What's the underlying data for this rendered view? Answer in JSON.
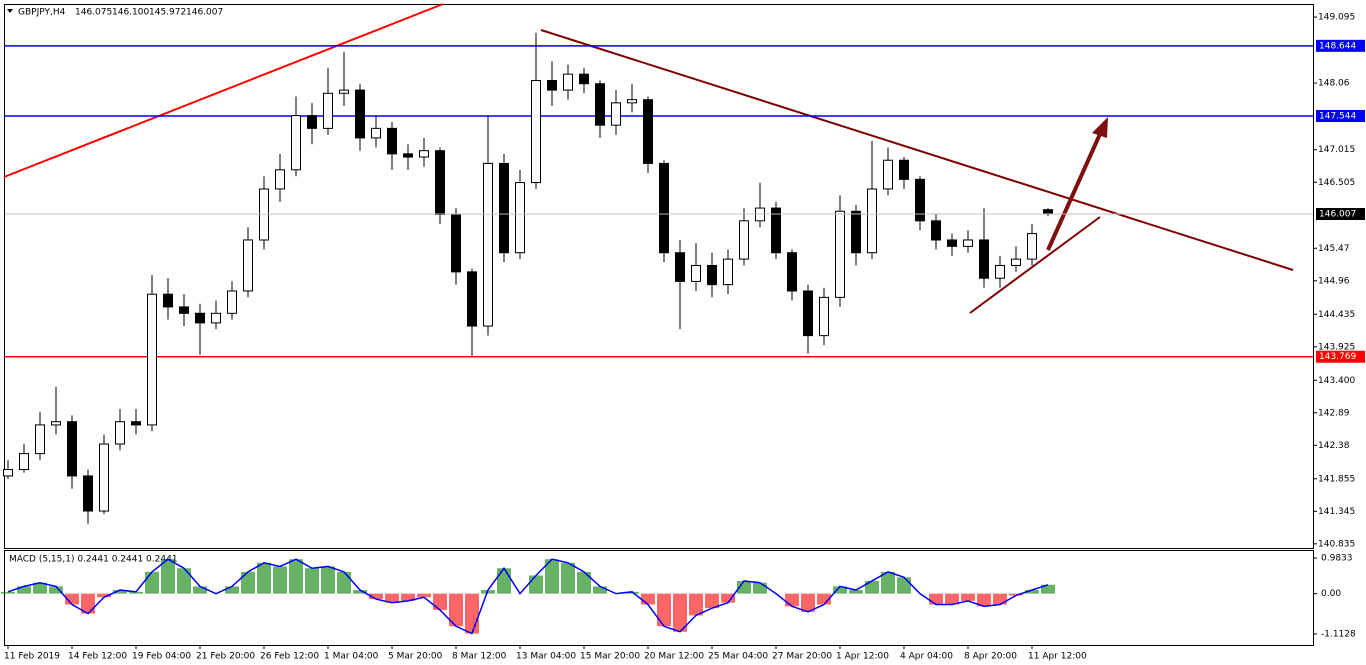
{
  "chart_data": {
    "type": "candlestick",
    "title": "GBPJPY,H4",
    "ohlc_labels": [
      "146.075",
      "146.100",
      "145.972",
      "146.007"
    ],
    "categories": [
      "11 Feb 2019",
      null,
      null,
      null,
      "14 Feb 12:00",
      null,
      null,
      null,
      "19 Feb 04:00",
      null,
      null,
      null,
      "21 Feb 20:00",
      null,
      null,
      null,
      "26 Feb 12:00",
      null,
      null,
      null,
      "1 Mar 04:00",
      null,
      null,
      null,
      "5 Mar 20:00",
      null,
      null,
      null,
      "8 Mar 12:00",
      null,
      null,
      null,
      "13 Mar 04:00",
      null,
      null,
      null,
      "15 Mar 20:00",
      null,
      null,
      null,
      "20 Mar 12:00",
      null,
      null,
      null,
      "25 Mar 04:00",
      null,
      null,
      null,
      "27 Mar 20:00",
      null,
      null,
      null,
      "1 Apr 12:00",
      null,
      null,
      null,
      "4 Apr 04:00",
      null,
      null,
      null,
      "8 Apr 20:00",
      null,
      null,
      null,
      "11 Apr 12:00",
      null
    ],
    "open": [
      141.9,
      142.0,
      142.25,
      142.7,
      142.75,
      141.9,
      141.35,
      142.4,
      142.75,
      142.7,
      144.75,
      144.55,
      144.45,
      144.3,
      144.45,
      144.8,
      145.6,
      146.4,
      146.7,
      147.55,
      147.35,
      147.9,
      147.95,
      147.2,
      147.35,
      146.95,
      146.9,
      147.0,
      146.0,
      145.1,
      144.25,
      146.8,
      145.4,
      146.5,
      148.1,
      147.95,
      148.2,
      148.05,
      147.4,
      147.75,
      147.8,
      146.8,
      145.4,
      144.95,
      145.2,
      144.9,
      145.3,
      145.9,
      146.1,
      145.4,
      144.8,
      144.1,
      144.7,
      146.05,
      145.4,
      146.4,
      146.85,
      146.55,
      145.9,
      145.6,
      145.5,
      145.6,
      145.0,
      145.2,
      145.3,
      146.075
    ],
    "high": [
      142.15,
      142.4,
      142.9,
      143.3,
      142.85,
      142.0,
      142.55,
      142.95,
      142.95,
      145.05,
      145.0,
      144.75,
      144.6,
      144.65,
      144.95,
      145.8,
      146.6,
      146.95,
      147.85,
      147.75,
      148.3,
      148.55,
      148.05,
      147.55,
      147.45,
      147.1,
      147.2,
      147.05,
      146.1,
      145.15,
      147.55,
      146.95,
      146.7,
      148.85,
      148.4,
      148.35,
      148.3,
      148.1,
      147.95,
      148.05,
      147.85,
      146.85,
      145.6,
      145.55,
      145.4,
      145.45,
      146.1,
      146.5,
      146.2,
      145.45,
      144.9,
      144.85,
      146.3,
      146.15,
      147.15,
      147.05,
      146.9,
      146.6,
      146.0,
      145.7,
      145.75,
      146.1,
      145.35,
      145.5,
      145.85,
      146.1
    ],
    "low": [
      141.85,
      141.95,
      142.15,
      142.55,
      141.7,
      141.15,
      141.3,
      142.3,
      142.55,
      142.6,
      144.35,
      144.25,
      143.8,
      144.2,
      144.35,
      144.7,
      145.45,
      146.2,
      146.6,
      147.1,
      147.25,
      147.7,
      147.0,
      147.05,
      146.7,
      146.7,
      146.75,
      145.85,
      144.9,
      143.78,
      144.1,
      145.25,
      145.3,
      146.4,
      147.7,
      147.8,
      147.9,
      147.2,
      147.25,
      147.6,
      146.65,
      145.25,
      144.2,
      144.8,
      144.7,
      144.75,
      145.2,
      145.8,
      145.3,
      144.65,
      143.82,
      143.95,
      144.55,
      145.2,
      145.3,
      146.3,
      146.4,
      145.75,
      145.45,
      145.35,
      145.4,
      144.85,
      144.85,
      145.1,
      145.2,
      145.972
    ],
    "close": [
      142.0,
      142.25,
      142.7,
      142.75,
      141.9,
      141.35,
      142.4,
      142.75,
      142.7,
      144.75,
      144.55,
      144.45,
      144.3,
      144.45,
      144.8,
      145.6,
      146.4,
      146.7,
      147.55,
      147.35,
      147.9,
      147.95,
      147.2,
      147.35,
      146.95,
      146.9,
      147.0,
      146.0,
      145.1,
      144.25,
      146.8,
      145.4,
      146.5,
      148.1,
      147.95,
      148.2,
      148.05,
      147.4,
      147.75,
      147.8,
      146.8,
      145.4,
      144.95,
      145.2,
      144.9,
      145.3,
      145.9,
      146.1,
      145.4,
      144.8,
      144.1,
      144.7,
      146.05,
      145.4,
      146.4,
      146.85,
      146.55,
      145.9,
      145.6,
      145.5,
      145.6,
      145.0,
      145.2,
      145.3,
      145.7,
      146.007
    ],
    "up_color": "#ffffff",
    "down_color": "#000000",
    "ylim": [
      140.77,
      149.3
    ],
    "yticks": [
      149.095,
      148.06,
      147.015,
      146.505,
      145.47,
      144.96,
      144.435,
      143.925,
      {
        "value": 143.4,
        "label": "143.400"
      },
      142.89,
      142.38,
      141.855,
      141.345,
      140.835
    ],
    "levels": [
      {
        "value": 148.644,
        "color": "#0000ff"
      },
      {
        "value": 147.544,
        "color": "#0000ff"
      },
      {
        "value": 143.769,
        "color": "#ff0000"
      }
    ],
    "macd": {
      "label": "MACD (5,15,1) 0.2441 0.2441 0.2441",
      "values": [
        0.05,
        0.2,
        0.3,
        0.2,
        -0.3,
        -0.55,
        -0.1,
        0.1,
        0.05,
        0.6,
        0.95,
        0.7,
        0.2,
        0.0,
        0.2,
        0.6,
        0.85,
        0.75,
        0.95,
        0.7,
        0.75,
        0.6,
        0.1,
        -0.15,
        -0.25,
        -0.2,
        -0.1,
        -0.45,
        -0.9,
        -1.1,
        0.1,
        0.7,
        0.0,
        0.5,
        0.95,
        0.85,
        0.6,
        0.2,
        0.0,
        0.05,
        -0.3,
        -0.9,
        -1.05,
        -0.6,
        -0.4,
        -0.25,
        0.35,
        0.3,
        0.0,
        -0.35,
        -0.5,
        -0.3,
        0.2,
        0.1,
        0.35,
        0.6,
        0.45,
        0.0,
        -0.3,
        -0.3,
        -0.2,
        -0.35,
        -0.3,
        -0.05,
        0.1,
        0.2441
      ],
      "ylim": [
        -1.416,
        1.176
      ],
      "yticks": [
        0.9833,
        {
          "value": 0,
          "label": "0.00"
        },
        -1.1128
      ],
      "line_color": "#0000ff",
      "positive_color": "#008000",
      "negative_color": "#ff0000"
    }
  }
}
